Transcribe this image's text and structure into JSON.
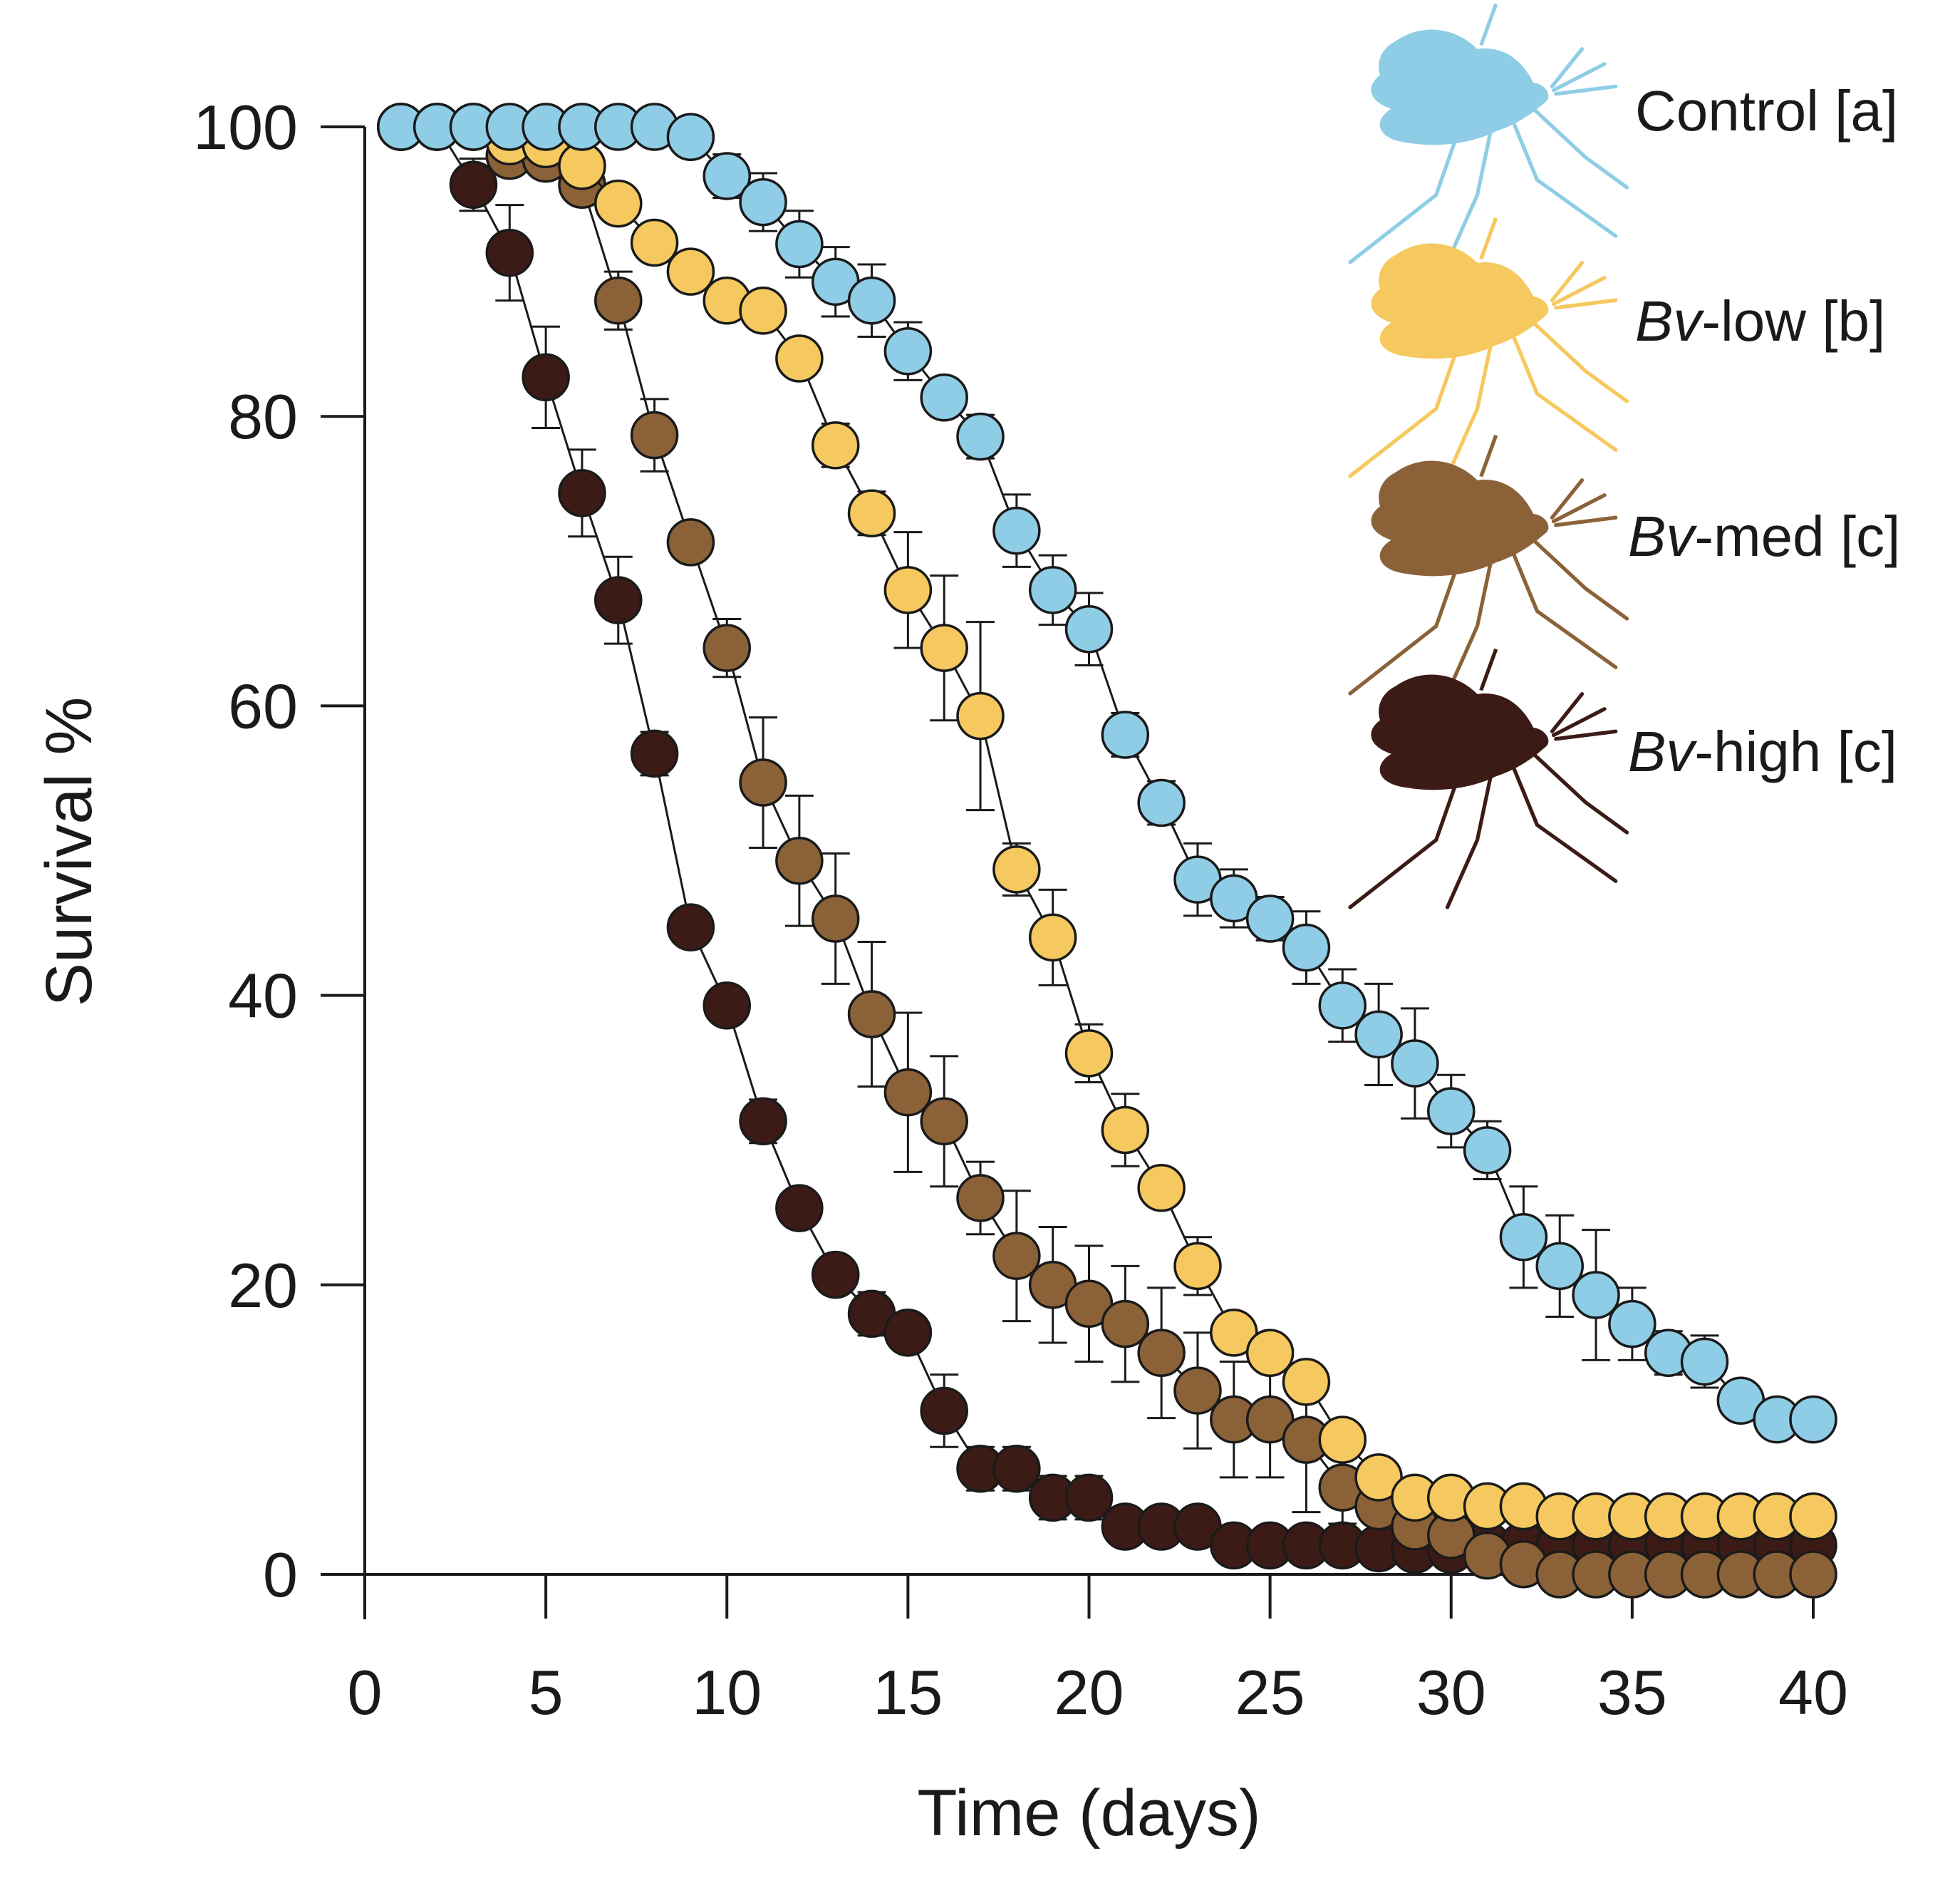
{
  "chart_data": {
    "type": "line",
    "title": "",
    "xlabel": "Time (days)",
    "ylabel": "Survival %",
    "xlim": [
      0,
      40
    ],
    "ylim": [
      0,
      100
    ],
    "xticks": [
      0,
      5,
      10,
      15,
      20,
      25,
      30,
      35,
      40
    ],
    "yticks": [
      0,
      20,
      40,
      60,
      80,
      100
    ],
    "grid": false,
    "legend_position": "top-right",
    "series": [
      {
        "name": "Control [a]",
        "label_prefix": "Control",
        "label_suffix": " [a]",
        "italic_prefix": false,
        "color": "#8fcde6",
        "x": [
          1,
          2,
          3,
          4,
          5,
          6,
          7,
          8,
          9,
          10,
          11,
          12,
          13,
          14,
          15,
          16,
          17,
          18,
          19,
          20,
          21,
          22,
          23,
          24,
          25,
          26,
          27,
          28,
          29,
          30,
          31,
          32,
          33,
          34,
          35,
          36,
          37,
          38,
          39,
          40
        ],
        "values": [
          100,
          100,
          100,
          100,
          100,
          100,
          100,
          100,
          99.3,
          96.6,
          94.8,
          91.9,
          89.3,
          88,
          84.5,
          81.3,
          78.6,
          72.1,
          68,
          65.3,
          58,
          53.3,
          48,
          46.7,
          45.3,
          43.3,
          39.3,
          37.3,
          35.3,
          32,
          29.3,
          23.3,
          21.3,
          19.3,
          17.3,
          15.3,
          14.7,
          12,
          10.7,
          10.7
        ],
        "errors": [
          0,
          0,
          0,
          0,
          0,
          0,
          0,
          0,
          0.5,
          1.5,
          2,
          2.3,
          2.4,
          2.5,
          2,
          1.3,
          1.5,
          2.5,
          2.4,
          2.5,
          1.5,
          1.5,
          2.5,
          2,
          1.5,
          2.5,
          2.5,
          3.5,
          3.8,
          2.5,
          2,
          3.5,
          3.5,
          4.5,
          2.5,
          1.5,
          1.8,
          0,
          0,
          0
        ]
      },
      {
        "name": "Bv-low [b]",
        "label_prefix": "Bv",
        "label_suffix": "-low [b]",
        "italic_prefix": true,
        "color": "#f5c95f",
        "x": [
          1,
          2,
          3,
          4,
          5,
          6,
          7,
          8,
          9,
          10,
          11,
          12,
          13,
          14,
          15,
          16,
          17,
          18,
          19,
          20,
          21,
          22,
          23,
          24,
          25,
          26,
          27,
          28,
          29,
          30,
          31,
          32,
          33,
          34,
          35,
          36,
          37,
          38,
          39,
          40
        ],
        "values": [
          100,
          100,
          100,
          99,
          98.8,
          97.3,
          94.7,
          92,
          90,
          88,
          87.3,
          84,
          78,
          73.3,
          68,
          64,
          59.3,
          48.7,
          44,
          36,
          30.7,
          26.7,
          21.3,
          16.7,
          15.3,
          13.3,
          9.3,
          6.7,
          5.3,
          5.3,
          4.7,
          4.7,
          4,
          4,
          4,
          4,
          4,
          4,
          4,
          4
        ],
        "errors": [
          0,
          0,
          0,
          0.5,
          0.8,
          1,
          0.8,
          0,
          0,
          0,
          1,
          0,
          1.5,
          1.5,
          4,
          5,
          6.5,
          1.8,
          3.3,
          2,
          2.5,
          0,
          2,
          0,
          0,
          0,
          0,
          0,
          0,
          0,
          0,
          0,
          0,
          0,
          0,
          0,
          0,
          0,
          0,
          0
        ]
      },
      {
        "name": "Bv-med [c]",
        "label_prefix": "Bv",
        "label_suffix": "-med [c]",
        "italic_prefix": true,
        "color": "#8b6238",
        "x": [
          1,
          2,
          3,
          4,
          5,
          6,
          7,
          8,
          9,
          10,
          11,
          12,
          13,
          14,
          15,
          16,
          17,
          18,
          19,
          20,
          21,
          22,
          23,
          24,
          25,
          26,
          27,
          28,
          29,
          30,
          31,
          32,
          33,
          34,
          35,
          36,
          37,
          38,
          39,
          40
        ],
        "values": [
          100,
          100,
          100,
          98,
          97.8,
          96,
          88,
          78.7,
          71.3,
          64,
          54.7,
          49.3,
          45.3,
          38.7,
          33.3,
          31.3,
          26,
          22,
          20,
          18.7,
          17.3,
          15.3,
          12.7,
          10.7,
          10.7,
          9.3,
          6,
          4.7,
          3.3,
          2.7,
          1.3,
          0.7,
          0,
          0,
          0,
          0,
          0,
          0,
          0,
          0
        ],
        "errors": [
          0,
          0,
          0,
          1,
          1,
          1,
          2,
          2.5,
          0,
          2,
          4.5,
          4.5,
          4.5,
          5,
          5.5,
          4.5,
          2.5,
          4.5,
          4,
          4,
          4,
          4.5,
          4,
          4,
          4,
          5,
          2.5,
          1,
          1,
          0,
          0,
          0,
          0,
          0,
          0,
          0,
          0,
          0,
          0,
          0
        ]
      },
      {
        "name": "Bv-high [c]",
        "label_prefix": "Bv",
        "label_suffix": "-high [c]",
        "italic_prefix": true,
        "color": "#3c1b17",
        "x": [
          1,
          2,
          3,
          4,
          5,
          6,
          7,
          8,
          9,
          10,
          11,
          12,
          13,
          14,
          15,
          16,
          17,
          18,
          19,
          20,
          21,
          22,
          23,
          24,
          25,
          26,
          27,
          28,
          29,
          30,
          31,
          32,
          33,
          34,
          35,
          36,
          37,
          38,
          39,
          40
        ],
        "values": [
          100,
          100,
          96,
          91.3,
          82.7,
          74.7,
          67.3,
          56.7,
          44.7,
          39.3,
          31.3,
          25.3,
          20.7,
          18,
          16.7,
          11.3,
          7.3,
          7.3,
          5.3,
          5.3,
          3.3,
          3.3,
          3.3,
          2,
          2,
          2,
          2,
          1.8,
          1.7,
          1.7,
          2,
          2,
          2,
          2,
          2,
          2,
          2,
          2,
          2,
          2
        ],
        "errors": [
          0,
          0,
          1.8,
          3.3,
          3.5,
          3,
          3,
          1.5,
          0,
          0,
          1.5,
          0,
          0,
          1.5,
          0,
          2.5,
          1.5,
          1.5,
          1.5,
          1.5,
          0,
          0,
          0,
          0,
          0,
          0,
          0,
          0,
          0,
          0,
          0,
          0,
          0,
          0,
          0,
          0,
          0,
          0,
          0,
          0
        ]
      }
    ]
  }
}
